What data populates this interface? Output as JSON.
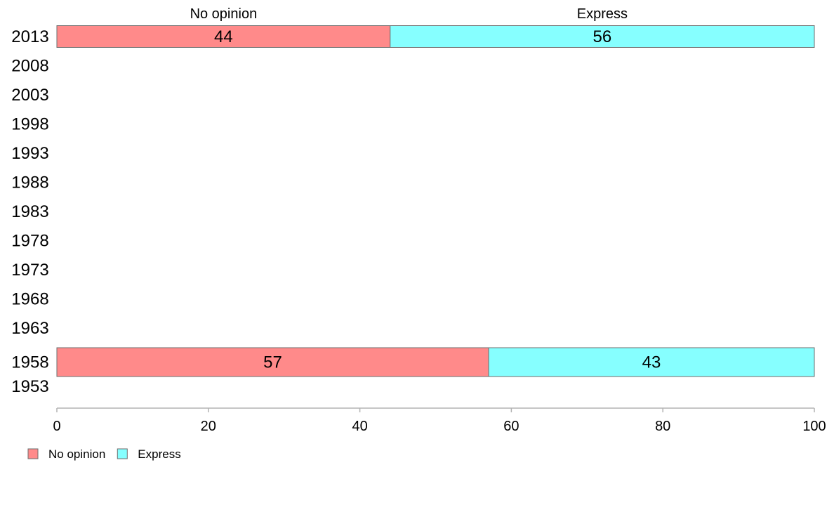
{
  "chart_data": {
    "type": "bar",
    "orientation": "horizontal",
    "stacked": true,
    "categories": [
      "2013",
      "2008",
      "2003",
      "1998",
      "1993",
      "1988",
      "1983",
      "1978",
      "1973",
      "1968",
      "1963",
      "1958",
      "1953"
    ],
    "series": [
      {
        "name": "No opinion",
        "color": "#ff8a8a",
        "values": [
          44,
          null,
          null,
          null,
          null,
          null,
          null,
          null,
          null,
          null,
          null,
          57,
          null
        ]
      },
      {
        "name": "Express",
        "color": "#86ffff",
        "values": [
          56,
          null,
          null,
          null,
          null,
          null,
          null,
          null,
          null,
          null,
          null,
          43,
          null
        ]
      }
    ],
    "top_labels": [
      "No opinion",
      "Express"
    ],
    "xticks": [
      0,
      20,
      40,
      60,
      80,
      100
    ],
    "xlim": [
      0,
      100
    ],
    "grid": false,
    "legend": {
      "position": "bottom-left",
      "entries": [
        "No opinion",
        "Express"
      ]
    },
    "title": "",
    "xlabel": "",
    "ylabel": ""
  }
}
